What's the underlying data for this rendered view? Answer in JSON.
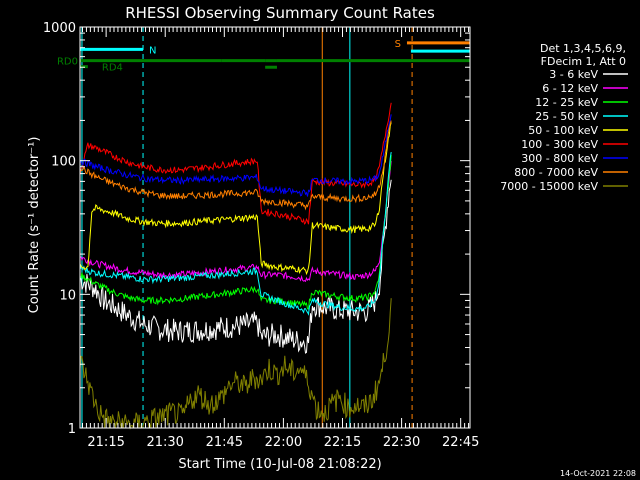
{
  "chart_data": {
    "type": "line",
    "title": "RHESSI Observing Summary Count Rates",
    "xlabel": "Start Time (10-Jul-08 21:08:22)",
    "ylabel": "Count Rate (s⁻¹ detector⁻¹)",
    "yscale": "log",
    "ylim": [
      1,
      1000
    ],
    "xlim_minutes": [
      0,
      99
    ],
    "x_ticks": [
      "21:15",
      "21:30",
      "21:45",
      "22:00",
      "22:15",
      "22:30",
      "22:45"
    ],
    "y_ticks": [
      "1",
      "10",
      "100",
      "1000"
    ],
    "timestamp": "14-Oct-2021 22:08",
    "legend": {
      "position": "right",
      "header": [
        "Det 1,3,4,5,6,9,",
        "FDecim 1, Att 0"
      ]
    },
    "series": [
      {
        "name": "3 - 6 keV",
        "color": "#ffffff",
        "t": [
          0,
          2,
          4,
          6,
          9,
          12,
          16,
          20,
          25,
          30,
          35,
          40,
          45,
          46,
          50,
          55,
          58,
          59,
          62,
          66,
          70,
          73,
          75,
          76,
          77,
          78,
          79
        ],
        "y": [
          13,
          12,
          11,
          9,
          8,
          7,
          6,
          5.5,
          5.3,
          5.4,
          5.6,
          5.8,
          6.1,
          4.8,
          5.0,
          4.5,
          4.4,
          8.5,
          8.0,
          7.6,
          7.4,
          7.5,
          9,
          12,
          22,
          45,
          80
        ]
      },
      {
        "name": "6 - 12 keV",
        "color": "#ff00ff",
        "t": [
          0,
          2,
          4,
          8,
          12,
          16,
          20,
          25,
          30,
          35,
          40,
          45,
          46,
          50,
          55,
          58,
          59,
          62,
          66,
          70,
          73,
          75,
          76,
          77,
          78,
          79
        ],
        "y": [
          19,
          18,
          17,
          16,
          15,
          14.5,
          14,
          14,
          14.5,
          15,
          15.5,
          16,
          14,
          14,
          13.5,
          13,
          15,
          14.5,
          14,
          13.5,
          14,
          15,
          18,
          30,
          55,
          95
        ]
      },
      {
        "name": "12 - 25 keV",
        "color": "#00ff00",
        "t": [
          0,
          2,
          4,
          8,
          12,
          16,
          20,
          25,
          30,
          35,
          40,
          45,
          46,
          50,
          55,
          58,
          59,
          62,
          66,
          70,
          73,
          75,
          76,
          77,
          78,
          79
        ],
        "y": [
          14,
          13,
          12,
          10.5,
          9.5,
          9,
          9,
          9.2,
          9.6,
          10,
          10.5,
          11,
          9,
          9,
          8.5,
          8.2,
          10.5,
          10,
          9.6,
          9.3,
          9.5,
          10.5,
          14,
          28,
          55,
          105
        ]
      },
      {
        "name": "25 - 50 keV",
        "color": "#00ffff",
        "t": [
          0,
          2,
          4,
          8,
          12,
          16,
          20,
          25,
          30,
          35,
          40,
          45,
          46,
          50,
          55,
          58,
          59,
          62,
          66,
          70,
          73,
          75,
          76,
          77,
          78,
          79
        ],
        "y": [
          16,
          15,
          14.5,
          14,
          13.5,
          13,
          13,
          13.2,
          13.6,
          14,
          14.5,
          15,
          10,
          9,
          8,
          7.5,
          9,
          8.5,
          8,
          7.8,
          8,
          9,
          13,
          28,
          60,
          120
        ]
      },
      {
        "name": "50 - 100 keV",
        "color": "#ffff00",
        "t": [
          0,
          2,
          3,
          4,
          8,
          12,
          16,
          20,
          25,
          30,
          35,
          40,
          45,
          46,
          50,
          55,
          58,
          59,
          62,
          66,
          70,
          73,
          75,
          76,
          77,
          78,
          79
        ],
        "y": [
          16,
          16,
          42,
          44,
          41,
          37,
          35,
          34,
          34,
          35,
          36,
          37,
          38,
          17,
          16,
          15.5,
          15,
          33,
          32,
          31,
          30.5,
          31,
          33,
          45,
          80,
          130,
          190
        ]
      },
      {
        "name": "100 - 300 keV",
        "color": "#ff0000",
        "t": [
          0,
          2,
          4,
          8,
          12,
          16,
          20,
          25,
          30,
          35,
          40,
          45,
          46,
          50,
          55,
          58,
          59,
          62,
          66,
          70,
          73,
          75,
          76,
          77,
          78,
          79
        ],
        "y": [
          82,
          130,
          125,
          110,
          98,
          90,
          86,
          85,
          88,
          92,
          96,
          100,
          42,
          40,
          37,
          35,
          70,
          69,
          67,
          66,
          67,
          72,
          90,
          130,
          190,
          270
        ]
      },
      {
        "name": "300 - 800 keV",
        "color": "#0000ff",
        "t": [
          0,
          2,
          4,
          8,
          12,
          16,
          20,
          25,
          30,
          35,
          40,
          45,
          46,
          50,
          55,
          58,
          59,
          62,
          66,
          70,
          73,
          75,
          76,
          77,
          78,
          79
        ],
        "y": [
          100,
          95,
          90,
          84,
          78,
          74,
          72,
          71,
          72,
          73,
          74,
          75,
          62,
          60,
          58,
          57,
          72,
          71,
          70,
          70,
          71,
          73,
          80,
          110,
          160,
          230
        ]
      },
      {
        "name": "800 - 7000 keV",
        "color": "#ff8000",
        "t": [
          0,
          2,
          4,
          8,
          12,
          16,
          20,
          25,
          30,
          35,
          40,
          45,
          46,
          50,
          55,
          58,
          59,
          62,
          66,
          70,
          73,
          75,
          76,
          77,
          78,
          79
        ],
        "y": [
          90,
          82,
          76,
          68,
          62,
          58,
          55,
          54,
          55,
          56,
          57,
          58,
          50,
          49,
          47,
          46,
          54,
          53,
          52,
          52,
          53,
          56,
          65,
          90,
          140,
          200
        ]
      },
      {
        "name": "7000 - 15000 keV",
        "color": "#808000",
        "t": [
          0,
          1,
          2,
          3,
          4,
          5,
          6,
          8,
          10,
          13,
          16,
          20,
          24,
          26,
          28,
          30,
          33,
          36,
          38,
          40,
          42,
          44,
          46,
          48,
          50,
          52,
          54,
          56,
          58,
          60,
          62,
          64,
          66,
          68,
          70,
          72,
          74,
          76,
          77,
          78,
          79
        ],
        "y": [
          3.2,
          2.7,
          2.2,
          1.8,
          1.5,
          1.3,
          1.2,
          1.1,
          1.1,
          1.05,
          1.1,
          1.2,
          1.3,
          1.2,
          1.6,
          1.8,
          1.5,
          1.7,
          2.1,
          2.2,
          2.0,
          2.4,
          2.3,
          2.8,
          2.5,
          2.9,
          2.6,
          2.8,
          2.2,
          1.4,
          1.3,
          1.5,
          1.7,
          1.4,
          1.5,
          1.4,
          1.6,
          2.2,
          3.0,
          4.5,
          8
        ]
      }
    ],
    "flag_bars": [
      {
        "label": "N",
        "color": "#00ffff",
        "segments": [
          [
            0,
            16
          ]
        ],
        "y": 680
      },
      {
        "label": "RD0",
        "color": "#008000",
        "segments": [
          [
            0,
            36
          ],
          [
            36,
            47
          ],
          [
            47,
            50
          ],
          [
            50,
            99
          ]
        ],
        "y": 560
      },
      {
        "label": "RD4",
        "color": "#008000",
        "segments": [
          [
            0,
            2
          ]
        ],
        "y": 505
      },
      {
        "label": "",
        "color": "#008000",
        "segments": [
          [
            47,
            50
          ]
        ],
        "y": 500
      },
      {
        "label": "S",
        "color": "#ff8000",
        "segments": [
          [
            83,
            99
          ]
        ],
        "y": 760
      },
      {
        "label": "",
        "color": "#00ffff",
        "segments": [
          [
            84,
            99
          ]
        ],
        "y": 660
      }
    ],
    "vertical_markers": [
      {
        "t": 0.5,
        "color": "#00ffff",
        "style": "solid"
      },
      {
        "t": 16,
        "color": "#00ffff",
        "style": "dashed"
      },
      {
        "t": 61.5,
        "color": "#ff8000",
        "style": "solid"
      },
      {
        "t": 68.5,
        "color": "#00ffff",
        "style": "solid"
      },
      {
        "t": 84.3,
        "color": "#ff8000",
        "style": "dashed"
      }
    ]
  }
}
